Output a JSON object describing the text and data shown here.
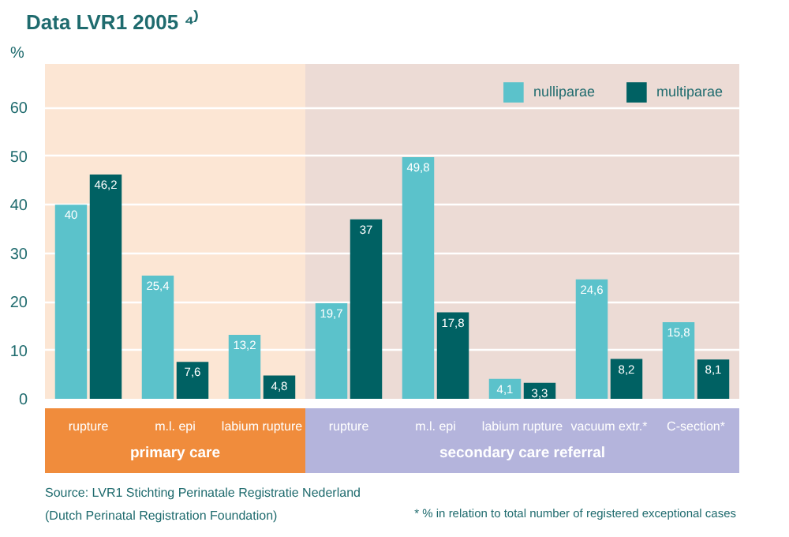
{
  "chart_data": {
    "type": "bar",
    "title": "Data LVR1 2005 ⁴⁾",
    "ylabel": "%",
    "categories": [
      "rupture",
      "m.l. epi",
      "labium rupture",
      "rupture",
      "m.l. epi",
      "labium rupture",
      "vacuum extr.*",
      "C-section*"
    ],
    "series": [
      {
        "name": "nulliparae",
        "color": "#5bc2cb",
        "values": [
          40,
          25.4,
          13.2,
          19.7,
          49.8,
          4.1,
          24.6,
          15.8
        ],
        "value_labels": [
          "40",
          "25,4",
          "13,2",
          "19,7",
          "49,8",
          "4,1",
          "24,6",
          "15,8"
        ]
      },
      {
        "name": "multiparae",
        "color": "#006163",
        "values": [
          46.2,
          7.6,
          4.8,
          37,
          17.8,
          3.3,
          8.2,
          8.1
        ],
        "value_labels": [
          "46,2",
          "7,6",
          "4,8",
          "37",
          "17,8",
          "3,3",
          "8,2",
          "8,1"
        ]
      }
    ],
    "ylim": [
      0,
      69
    ],
    "yticks": [
      0,
      10,
      20,
      30,
      40,
      50,
      60
    ],
    "grid": "y",
    "legend": "top right",
    "annotations": [
      "primary care",
      "secondary care referral",
      "Source: LVR1 Stichting Perinatale Registratie Nederland\n(Dutch Perinatal Registration Foundation)",
      "* % in relation to total number of registered exceptional cases"
    ]
  }
}
